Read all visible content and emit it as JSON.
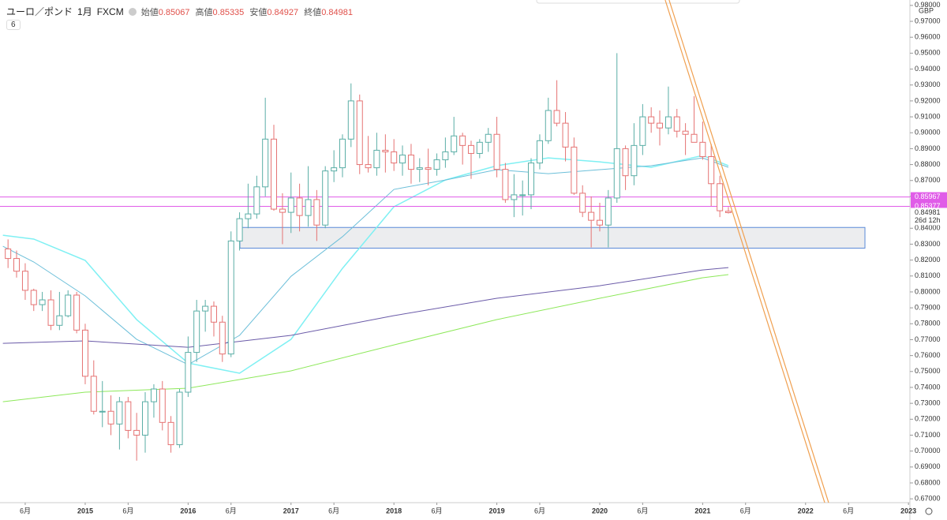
{
  "header": {
    "symbol": "ユーロ／ポンド",
    "interval": "1月",
    "source": "FXCM",
    "ohlc_labels": [
      "始値",
      "高値",
      "安値",
      "終値"
    ],
    "badge": "6"
  },
  "chart_data": {
    "type": "candlestick",
    "currency": "GBP",
    "up_color": "#5aaea6",
    "down_color": "#e57373",
    "xlim": [
      2014.172,
      2023.014
    ],
    "xticks": [
      {
        "value": 2014.417,
        "label": "6月"
      },
      2015,
      {
        "value": 2015.417,
        "label": "6月"
      },
      2016,
      {
        "value": 2016.417,
        "label": "6月"
      },
      2017,
      {
        "value": 2017.417,
        "label": "6月"
      },
      2018,
      {
        "value": 2018.417,
        "label": "6月"
      },
      2019,
      {
        "value": 2019.417,
        "label": "6月"
      },
      2020,
      {
        "value": 2020.417,
        "label": "6月"
      },
      2021,
      {
        "value": 2021.417,
        "label": "6月"
      },
      2022,
      {
        "value": 2022.417,
        "label": "6月"
      },
      2023
    ],
    "ylim": [
      0.6676,
      0.9834
    ],
    "yticks": [
      {
        "value": 0.67,
        "label": "0.67000"
      },
      {
        "value": 0.68,
        "label": "0.68000"
      },
      {
        "value": 0.69,
        "label": "0.69000"
      },
      {
        "value": 0.7,
        "label": "0.70000"
      },
      {
        "value": 0.71,
        "label": "0.71000"
      },
      {
        "value": 0.72,
        "label": "0.72000"
      },
      {
        "value": 0.73,
        "label": "0.73000"
      },
      {
        "value": 0.74,
        "label": "0.74000"
      },
      {
        "value": 0.75,
        "label": "0.75000"
      },
      {
        "value": 0.76,
        "label": "0.76000"
      },
      {
        "value": 0.77,
        "label": "0.77000"
      },
      {
        "value": 0.78,
        "label": "0.78000"
      },
      {
        "value": 0.79,
        "label": "0.79000"
      },
      {
        "value": 0.8,
        "label": "0.80000"
      },
      {
        "value": 0.81,
        "label": "0.81000"
      },
      {
        "value": 0.82,
        "label": "0.82000"
      },
      {
        "value": 0.83,
        "label": "0.83000"
      },
      {
        "value": 0.84,
        "label": "0.84000"
      },
      {
        "value": 0.86,
        "label": "0.86000"
      },
      {
        "value": 0.87,
        "label": "0.87000"
      },
      {
        "value": 0.88,
        "label": "0.88000"
      },
      {
        "value": 0.89,
        "label": "0.89000"
      },
      {
        "value": 0.9,
        "label": "0.90000"
      },
      {
        "value": 0.91,
        "label": "0.91000"
      },
      {
        "value": 0.92,
        "label": "0.92000"
      },
      {
        "value": 0.93,
        "label": "0.93000"
      },
      {
        "value": 0.94,
        "label": "0.94000"
      },
      {
        "value": 0.95,
        "label": "0.95000"
      },
      {
        "value": 0.96,
        "label": "0.96000"
      },
      {
        "value": 0.97,
        "label": "0.97000"
      },
      {
        "value": 0.98,
        "label": "0.98000"
      }
    ],
    "x": [
      2014.25,
      2014.333,
      2014.417,
      2014.5,
      2014.583,
      2014.667,
      2014.75,
      2014.833,
      2014.917,
      2015,
      2015.083,
      2015.167,
      2015.25,
      2015.333,
      2015.417,
      2015.5,
      2015.583,
      2015.667,
      2015.75,
      2015.833,
      2015.917,
      2016,
      2016.083,
      2016.167,
      2016.25,
      2016.333,
      2016.417,
      2016.5,
      2016.583,
      2016.667,
      2016.75,
      2016.833,
      2016.917,
      2017,
      2017.083,
      2017.167,
      2017.25,
      2017.333,
      2017.417,
      2017.5,
      2017.583,
      2017.667,
      2017.75,
      2017.833,
      2017.917,
      2018,
      2018.083,
      2018.167,
      2018.25,
      2018.333,
      2018.417,
      2018.5,
      2018.583,
      2018.667,
      2018.75,
      2018.833,
      2018.917,
      2019,
      2019.083,
      2019.167,
      2019.25,
      2019.333,
      2019.417,
      2019.5,
      2019.583,
      2019.667,
      2019.75,
      2019.833,
      2019.917,
      2020,
      2020.083,
      2020.167,
      2020.25,
      2020.333,
      2020.417,
      2020.5,
      2020.583,
      2020.667,
      2020.75,
      2020.833,
      2020.917,
      2021,
      2021.083,
      2021.167,
      2021.25
    ],
    "candles": [
      [
        0.827,
        0.833,
        0.815,
        0.821
      ],
      [
        0.821,
        0.826,
        0.809,
        0.813
      ],
      [
        0.813,
        0.818,
        0.795,
        0.801
      ],
      [
        0.801,
        0.802,
        0.788,
        0.792
      ],
      [
        0.792,
        0.8,
        0.788,
        0.795
      ],
      [
        0.795,
        0.801,
        0.776,
        0.779
      ],
      [
        0.779,
        0.8,
        0.776,
        0.785
      ],
      [
        0.785,
        0.801,
        0.784,
        0.798
      ],
      [
        0.798,
        0.8,
        0.774,
        0.776
      ],
      [
        0.776,
        0.78,
        0.742,
        0.747
      ],
      [
        0.747,
        0.757,
        0.723,
        0.725
      ],
      [
        0.725,
        0.744,
        0.715,
        0.725
      ],
      [
        0.725,
        0.735,
        0.71,
        0.717
      ],
      [
        0.717,
        0.734,
        0.701,
        0.731
      ],
      [
        0.731,
        0.734,
        0.708,
        0.713
      ],
      [
        0.713,
        0.724,
        0.694,
        0.71
      ],
      [
        0.71,
        0.737,
        0.699,
        0.731
      ],
      [
        0.731,
        0.742,
        0.721,
        0.739
      ],
      [
        0.739,
        0.744,
        0.713,
        0.718
      ],
      [
        0.718,
        0.722,
        0.699,
        0.704
      ],
      [
        0.704,
        0.739,
        0.702,
        0.737
      ],
      [
        0.737,
        0.772,
        0.734,
        0.762
      ],
      [
        0.762,
        0.795,
        0.756,
        0.788
      ],
      [
        0.788,
        0.795,
        0.775,
        0.791
      ],
      [
        0.791,
        0.794,
        0.772,
        0.781
      ],
      [
        0.781,
        0.785,
        0.756,
        0.761
      ],
      [
        0.761,
        0.838,
        0.759,
        0.832
      ],
      [
        0.832,
        0.85,
        0.826,
        0.846
      ],
      [
        0.846,
        0.868,
        0.84,
        0.849
      ],
      [
        0.849,
        0.873,
        0.846,
        0.866
      ],
      [
        0.866,
        0.922,
        0.86,
        0.896
      ],
      [
        0.896,
        0.905,
        0.851,
        0.852
      ],
      [
        0.852,
        0.862,
        0.83,
        0.85
      ],
      [
        0.85,
        0.875,
        0.837,
        0.859
      ],
      [
        0.859,
        0.868,
        0.838,
        0.848
      ],
      [
        0.848,
        0.879,
        0.841,
        0.858
      ],
      [
        0.858,
        0.864,
        0.832,
        0.842
      ],
      [
        0.842,
        0.879,
        0.84,
        0.876
      ],
      [
        0.876,
        0.889,
        0.869,
        0.878
      ],
      [
        0.878,
        0.899,
        0.872,
        0.896
      ],
      [
        0.896,
        0.931,
        0.891,
        0.92
      ],
      [
        0.92,
        0.924,
        0.874,
        0.88
      ],
      [
        0.88,
        0.898,
        0.875,
        0.878
      ],
      [
        0.878,
        0.9,
        0.873,
        0.889
      ],
      [
        0.889,
        0.899,
        0.875,
        0.888
      ],
      [
        0.888,
        0.896,
        0.876,
        0.881
      ],
      [
        0.881,
        0.892,
        0.873,
        0.886
      ],
      [
        0.886,
        0.893,
        0.868,
        0.877
      ],
      [
        0.877,
        0.884,
        0.869,
        0.878
      ],
      [
        0.878,
        0.89,
        0.867,
        0.877
      ],
      [
        0.877,
        0.887,
        0.873,
        0.883
      ],
      [
        0.883,
        0.897,
        0.878,
        0.888
      ],
      [
        0.888,
        0.91,
        0.886,
        0.898
      ],
      [
        0.898,
        0.9,
        0.88,
        0.892
      ],
      [
        0.892,
        0.895,
        0.871,
        0.887
      ],
      [
        0.887,
        0.896,
        0.884,
        0.894
      ],
      [
        0.894,
        0.903,
        0.888,
        0.899
      ],
      [
        0.899,
        0.91,
        0.872,
        0.877
      ],
      [
        0.877,
        0.881,
        0.856,
        0.858
      ],
      [
        0.858,
        0.874,
        0.847,
        0.861
      ],
      [
        0.861,
        0.87,
        0.848,
        0.861
      ],
      [
        0.861,
        0.884,
        0.852,
        0.881
      ],
      [
        0.881,
        0.899,
        0.877,
        0.895
      ],
      [
        0.895,
        0.922,
        0.893,
        0.914
      ],
      [
        0.914,
        0.933,
        0.904,
        0.906
      ],
      [
        0.906,
        0.913,
        0.882,
        0.891
      ],
      [
        0.891,
        0.897,
        0.861,
        0.862
      ],
      [
        0.862,
        0.867,
        0.847,
        0.85
      ],
      [
        0.85,
        0.86,
        0.828,
        0.845
      ],
      [
        0.845,
        0.856,
        0.838,
        0.842
      ],
      [
        0.842,
        0.864,
        0.828,
        0.859
      ],
      [
        0.859,
        0.95,
        0.856,
        0.89
      ],
      [
        0.89,
        0.892,
        0.864,
        0.873
      ],
      [
        0.873,
        0.906,
        0.867,
        0.892
      ],
      [
        0.892,
        0.918,
        0.886,
        0.91
      ],
      [
        0.91,
        0.916,
        0.9,
        0.906
      ],
      [
        0.906,
        0.914,
        0.892,
        0.903
      ],
      [
        0.903,
        0.929,
        0.899,
        0.91
      ],
      [
        0.91,
        0.915,
        0.897,
        0.901
      ],
      [
        0.901,
        0.906,
        0.886,
        0.899
      ],
      [
        0.899,
        0.923,
        0.895,
        0.894
      ],
      [
        0.894,
        0.907,
        0.883,
        0.885
      ],
      [
        0.885,
        0.893,
        0.854,
        0.868
      ],
      [
        0.868,
        0.873,
        0.847,
        0.851
      ],
      [
        0.85067,
        0.85335,
        0.84927,
        0.84981
      ]
    ],
    "indicators": [
      {
        "color": "#7ff0f3",
        "x": [
          2014.2,
          2014.5,
          2015,
          2015.5,
          2016,
          2016.5,
          2017,
          2017.5,
          2018,
          2018.5,
          2019,
          2019.5,
          2020,
          2020.5,
          2021,
          2021.25
        ],
        "values": [
          0.8356,
          0.8332,
          0.8198,
          0.7826,
          0.7553,
          0.7489,
          0.7702,
          0.8148,
          0.8535,
          0.8703,
          0.8793,
          0.8842,
          0.8817,
          0.8783,
          0.8857,
          0.8793
        ]
      },
      {
        "color": "#6cbfd9",
        "x": [
          2014.2,
          2014.5,
          2015,
          2015.5,
          2016,
          2016.5,
          2017,
          2017.5,
          2018,
          2018.5,
          2019,
          2019.5,
          2020,
          2020.5,
          2021,
          2021.25
        ],
        "values": [
          0.8287,
          0.8188,
          0.7975,
          0.7702,
          0.7543,
          0.7727,
          0.8098,
          0.8347,
          0.8644,
          0.8703,
          0.8768,
          0.8743,
          0.8768,
          0.8793,
          0.8842,
          0.8783
        ]
      },
      {
        "color": "#6a5aa8",
        "x": [
          2014.2,
          2015,
          2016,
          2017,
          2018,
          2019,
          2020,
          2021,
          2021.25
        ],
        "values": [
          0.7677,
          0.7692,
          0.7652,
          0.7727,
          0.7851,
          0.796,
          0.8039,
          0.8138,
          0.8153
        ]
      },
      {
        "color": "#8de85a",
        "x": [
          2014.2,
          2015,
          2016,
          2017,
          2018,
          2019,
          2020,
          2021,
          2021.25
        ],
        "values": [
          0.731,
          0.737,
          0.7395,
          0.7504,
          0.7667,
          0.7826,
          0.796,
          0.8089,
          0.8109
        ]
      }
    ],
    "hlines": [
      {
        "value": 0.85967,
        "color": "#e05ce8"
      },
      {
        "value": 0.85377,
        "color": "#e05ce8"
      }
    ],
    "zone": {
      "x": [
        2016.503,
        2022.577
      ],
      "y": [
        0.8405,
        0.8275
      ]
    },
    "trendlines": [
      {
        "x": [
          2020.636,
          2022.186
        ],
        "y": [
          0.9834,
          0.6676
        ],
        "color": "#f0a050"
      },
      {
        "x": [
          2020.674,
          2022.224
        ],
        "y": [
          0.9834,
          0.6676
        ],
        "color": "#f0a050"
      }
    ],
    "countdown": "26d 12h"
  }
}
